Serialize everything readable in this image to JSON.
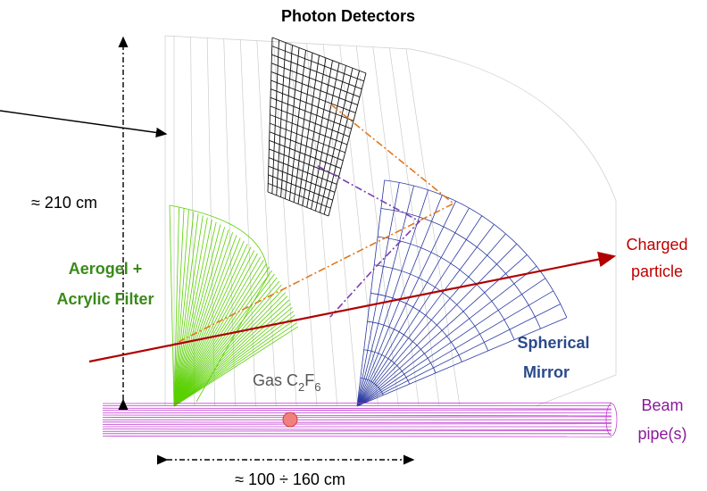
{
  "labels": {
    "title": "Photon Detectors",
    "height": "≈ 210 cm",
    "aerogel": [
      "Aerogel +",
      "Acrylic Filter"
    ],
    "gas": {
      "prefix": "Gas C",
      "sub1": "2",
      "mid": "F",
      "sub2": "6"
    },
    "mirror": [
      "Spherical",
      "Mirror"
    ],
    "particle": [
      "Charged",
      "particle"
    ],
    "beam": [
      "Beam",
      "pipe(s)"
    ],
    "length": "≈ 100 ÷ 160 cm"
  }
}
